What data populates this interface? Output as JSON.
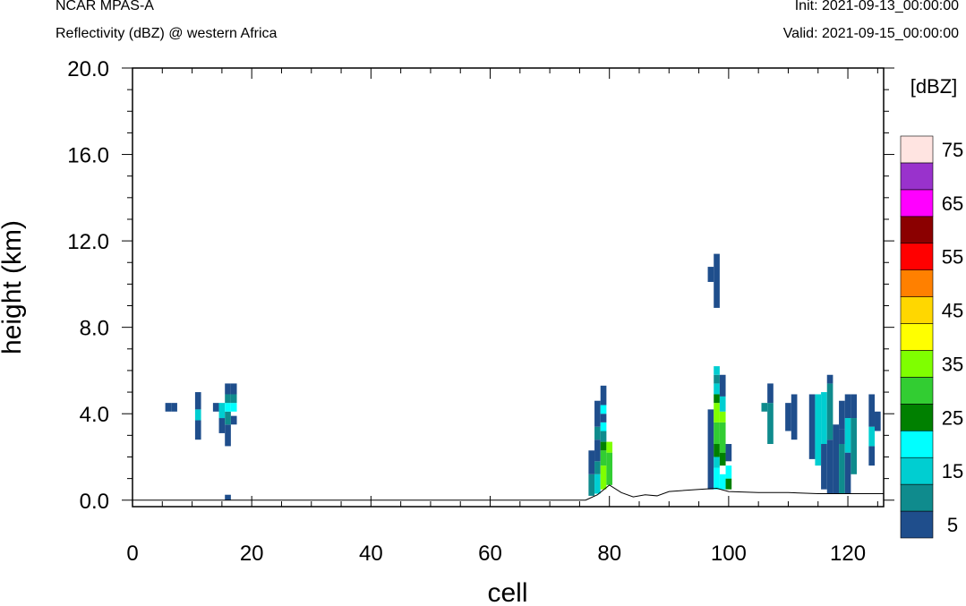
{
  "header": {
    "model": "NCAR MPAS-A",
    "field": "Reflectivity (dBZ) @ western Africa",
    "init": "Init: 2021-09-13_00:00:00",
    "valid": "Valid: 2021-09-15_00:00:00"
  },
  "chart_data": {
    "type": "heatmap",
    "xlabel": "cell",
    "ylabel": "height (km)",
    "xlim": [
      0,
      126
    ],
    "ylim": [
      -0.3,
      20.0
    ],
    "xticks": [
      0,
      20,
      40,
      60,
      80,
      100,
      120
    ],
    "yticks": [
      0.0,
      4.0,
      8.0,
      12.0,
      16.0,
      20.0
    ],
    "xtick_labels": [
      "0",
      "20",
      "40",
      "60",
      "80",
      "100",
      "120"
    ],
    "ytick_labels": [
      "0.0",
      "4.0",
      "8.0",
      "12.0",
      "16.0",
      "20.0"
    ],
    "grid": false,
    "colorbar": {
      "title": "[dBZ]",
      "label_values": [
        "5",
        "15",
        "25",
        "35",
        "45",
        "55",
        "65",
        "75"
      ],
      "colors": [
        "#1f4e8c",
        "#0f8b8d",
        "#00ced1",
        "#00ffff",
        "#008000",
        "#32cd32",
        "#7fff00",
        "#ffff00",
        "#ffd700",
        "#ff8000",
        "#ff0000",
        "#8b0000",
        "#ff00ff",
        "#9932cc",
        "#ffe4e1"
      ]
    },
    "terrain": [
      [
        76,
        0.0
      ],
      [
        78,
        0.25
      ],
      [
        80,
        0.7
      ],
      [
        82,
        0.35
      ],
      [
        84,
        0.15
      ],
      [
        86,
        0.25
      ],
      [
        88,
        0.2
      ],
      [
        90,
        0.4
      ],
      [
        95,
        0.5
      ],
      [
        98,
        0.55
      ],
      [
        100,
        0.4
      ],
      [
        105,
        0.35
      ],
      [
        110,
        0.35
      ],
      [
        115,
        0.3
      ],
      [
        126,
        0.3
      ]
    ],
    "cells": [
      {
        "x": 6,
        "y0": 4.1,
        "y1": 4.5,
        "color": "#1f4e8c"
      },
      {
        "x": 7,
        "y0": 4.1,
        "y1": 4.5,
        "color": "#1f4e8c"
      },
      {
        "x": 11,
        "y0": 2.8,
        "y1": 3.7,
        "color": "#1f4e8c"
      },
      {
        "x": 11,
        "y0": 3.7,
        "y1": 4.2,
        "color": "#00ced1"
      },
      {
        "x": 11,
        "y0": 4.2,
        "y1": 5.0,
        "color": "#1f4e8c"
      },
      {
        "x": 14,
        "y0": 4.1,
        "y1": 4.5,
        "color": "#1f4e8c"
      },
      {
        "x": 15,
        "y0": 3.1,
        "y1": 3.8,
        "color": "#1f4e8c"
      },
      {
        "x": 15,
        "y0": 3.8,
        "y1": 4.5,
        "color": "#00ced1"
      },
      {
        "x": 16,
        "y0": 2.5,
        "y1": 3.5,
        "color": "#1f4e8c"
      },
      {
        "x": 16,
        "y0": 3.5,
        "y1": 4.1,
        "color": "#0f8b8d"
      },
      {
        "x": 16,
        "y0": 4.1,
        "y1": 4.5,
        "color": "#00ffff"
      },
      {
        "x": 16,
        "y0": 4.5,
        "y1": 4.9,
        "color": "#0f8b8d"
      },
      {
        "x": 16,
        "y0": 4.9,
        "y1": 5.4,
        "color": "#1f4e8c"
      },
      {
        "x": 17,
        "y0": 3.5,
        "y1": 3.9,
        "color": "#1f4e8c"
      },
      {
        "x": 17,
        "y0": 4.1,
        "y1": 4.5,
        "color": "#00ffff"
      },
      {
        "x": 17,
        "y0": 4.5,
        "y1": 4.9,
        "color": "#0f8b8d"
      },
      {
        "x": 17,
        "y0": 4.9,
        "y1": 5.4,
        "color": "#1f4e8c"
      },
      {
        "x": 16,
        "y0": 0.0,
        "y1": 0.25,
        "color": "#1f4e8c"
      },
      {
        "x": 77,
        "y0": 0.2,
        "y1": 1.2,
        "color": "#0f8b8d"
      },
      {
        "x": 77,
        "y0": 1.2,
        "y1": 2.3,
        "color": "#1f4e8c"
      },
      {
        "x": 78,
        "y0": 0.3,
        "y1": 1.2,
        "color": "#00ced1"
      },
      {
        "x": 78,
        "y0": 1.2,
        "y1": 1.8,
        "color": "#0f8b8d"
      },
      {
        "x": 78,
        "y0": 1.8,
        "y1": 2.8,
        "color": "#1f4e8c"
      },
      {
        "x": 78,
        "y0": 2.8,
        "y1": 3.4,
        "color": "#0f8b8d"
      },
      {
        "x": 78,
        "y0": 3.4,
        "y1": 4.6,
        "color": "#1f4e8c"
      },
      {
        "x": 79,
        "y0": 0.5,
        "y1": 1.6,
        "color": "#7fff00"
      },
      {
        "x": 79,
        "y0": 1.6,
        "y1": 2.3,
        "color": "#32cd32"
      },
      {
        "x": 79,
        "y0": 2.3,
        "y1": 2.7,
        "color": "#008000"
      },
      {
        "x": 79,
        "y0": 2.7,
        "y1": 3.2,
        "color": "#0f8b8d"
      },
      {
        "x": 79,
        "y0": 3.2,
        "y1": 3.6,
        "color": "#00ffff"
      },
      {
        "x": 79,
        "y0": 3.6,
        "y1": 4.0,
        "color": "#1f4e8c"
      },
      {
        "x": 79,
        "y0": 4.0,
        "y1": 4.4,
        "color": "#00ffff"
      },
      {
        "x": 79,
        "y0": 4.4,
        "y1": 5.3,
        "color": "#1f4e8c"
      },
      {
        "x": 80,
        "y0": 0.7,
        "y1": 2.2,
        "color": "#32cd32"
      },
      {
        "x": 80,
        "y0": 2.2,
        "y1": 2.7,
        "color": "#7fff00"
      },
      {
        "x": 97,
        "y0": 0.5,
        "y1": 4.2,
        "color": "#1f4e8c"
      },
      {
        "x": 97,
        "y0": 10.1,
        "y1": 10.8,
        "color": "#1f4e8c"
      },
      {
        "x": 98,
        "y0": 0.5,
        "y1": 1.5,
        "color": "#00ffff"
      },
      {
        "x": 98,
        "y0": 1.5,
        "y1": 2.0,
        "color": "#00ced1"
      },
      {
        "x": 98,
        "y0": 2.0,
        "y1": 2.6,
        "color": "#008000"
      },
      {
        "x": 98,
        "y0": 2.6,
        "y1": 3.6,
        "color": "#32cd32"
      },
      {
        "x": 98,
        "y0": 3.6,
        "y1": 4.5,
        "color": "#7fff00"
      },
      {
        "x": 98,
        "y0": 4.5,
        "y1": 4.9,
        "color": "#008000"
      },
      {
        "x": 98,
        "y0": 4.9,
        "y1": 5.4,
        "color": "#00ced1"
      },
      {
        "x": 98,
        "y0": 5.4,
        "y1": 5.8,
        "color": "#0f8b8d"
      },
      {
        "x": 98,
        "y0": 5.8,
        "y1": 6.2,
        "color": "#00ced1"
      },
      {
        "x": 98,
        "y0": 8.9,
        "y1": 11.4,
        "color": "#1f4e8c"
      },
      {
        "x": 99,
        "y0": 0.5,
        "y1": 1.2,
        "color": "#00ffff"
      },
      {
        "x": 99,
        "y0": 1.6,
        "y1": 2.2,
        "color": "#008000"
      },
      {
        "x": 99,
        "y0": 2.2,
        "y1": 3.6,
        "color": "#32cd32"
      },
      {
        "x": 99,
        "y0": 3.6,
        "y1": 4.1,
        "color": "#7fff00"
      },
      {
        "x": 99,
        "y0": 4.1,
        "y1": 4.8,
        "color": "#00ced1"
      },
      {
        "x": 99,
        "y0": 4.8,
        "y1": 5.8,
        "color": "#1f4e8c"
      },
      {
        "x": 100,
        "y0": 0.5,
        "y1": 1.0,
        "color": "#008000"
      },
      {
        "x": 100,
        "y0": 1.0,
        "y1": 1.6,
        "color": "#00ffff"
      },
      {
        "x": 100,
        "y0": 1.8,
        "y1": 2.6,
        "color": "#1f4e8c"
      },
      {
        "x": 106,
        "y0": 4.1,
        "y1": 4.5,
        "color": "#0f8b8d"
      },
      {
        "x": 107,
        "y0": 2.6,
        "y1": 4.5,
        "color": "#0f8b8d"
      },
      {
        "x": 107,
        "y0": 4.5,
        "y1": 5.4,
        "color": "#1f4e8c"
      },
      {
        "x": 110,
        "y0": 3.2,
        "y1": 4.5,
        "color": "#1f4e8c"
      },
      {
        "x": 111,
        "y0": 2.8,
        "y1": 4.9,
        "color": "#1f4e8c"
      },
      {
        "x": 114,
        "y0": 1.9,
        "y1": 4.9,
        "color": "#1f4e8c"
      },
      {
        "x": 115,
        "y0": 1.6,
        "y1": 4.9,
        "color": "#00ced1"
      },
      {
        "x": 116,
        "y0": 0.5,
        "y1": 2.6,
        "color": "#1f4e8c"
      },
      {
        "x": 116,
        "y0": 2.6,
        "y1": 5.0,
        "color": "#00ced1"
      },
      {
        "x": 117,
        "y0": 0.3,
        "y1": 2.8,
        "color": "#1f4e8c"
      },
      {
        "x": 117,
        "y0": 2.8,
        "y1": 5.4,
        "color": "#0f8b8d"
      },
      {
        "x": 117,
        "y0": 5.4,
        "y1": 5.8,
        "color": "#1f4e8c"
      },
      {
        "x": 118,
        "y0": 0.3,
        "y1": 3.5,
        "color": "#1f4e8c"
      },
      {
        "x": 119,
        "y0": 0.3,
        "y1": 2.6,
        "color": "#0f8b8d"
      },
      {
        "x": 119,
        "y0": 2.6,
        "y1": 3.3,
        "color": "#1f4e8c"
      },
      {
        "x": 119,
        "y0": 3.3,
        "y1": 4.6,
        "color": "#1f4e8c"
      },
      {
        "x": 120,
        "y0": 0.3,
        "y1": 2.2,
        "color": "#1f4e8c"
      },
      {
        "x": 120,
        "y0": 2.2,
        "y1": 3.8,
        "color": "#00ced1"
      },
      {
        "x": 120,
        "y0": 3.8,
        "y1": 4.9,
        "color": "#1f4e8c"
      },
      {
        "x": 121,
        "y0": 1.2,
        "y1": 3.8,
        "color": "#0f8b8d"
      },
      {
        "x": 121,
        "y0": 3.8,
        "y1": 4.9,
        "color": "#1f4e8c"
      },
      {
        "x": 124,
        "y0": 1.6,
        "y1": 2.5,
        "color": "#1f4e8c"
      },
      {
        "x": 124,
        "y0": 2.5,
        "y1": 3.4,
        "color": "#00ced1"
      },
      {
        "x": 124,
        "y0": 3.4,
        "y1": 4.9,
        "color": "#1f4e8c"
      },
      {
        "x": 125,
        "y0": 3.2,
        "y1": 4.1,
        "color": "#1f4e8c"
      }
    ]
  }
}
